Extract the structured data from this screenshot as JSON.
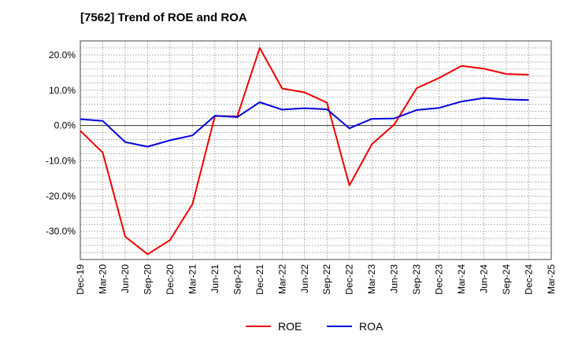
{
  "chart_data": {
    "type": "line",
    "title": "[7562]  Trend of ROE and ROA",
    "xlabel": "",
    "ylabel": "",
    "x": [
      "Dec-19",
      "Mar-20",
      "Jun-20",
      "Sep-20",
      "Dec-20",
      "Mar-21",
      "Jun-21",
      "Sep-21",
      "Dec-21",
      "Mar-22",
      "Jun-22",
      "Sep-22",
      "Dec-22",
      "Mar-23",
      "Jun-23",
      "Sep-23",
      "Dec-23",
      "Mar-24",
      "Jun-24",
      "Sep-24",
      "Dec-24",
      "Mar-25"
    ],
    "ylim": [
      -38,
      24
    ],
    "yticks": [
      20,
      10,
      0,
      -10,
      -20,
      -30
    ],
    "ytick_labels": [
      "20.0%",
      "10.0%",
      "0.0%",
      "-10.0%",
      "-20.0%",
      "-30.0%"
    ],
    "grid": true,
    "legend_position": "bottom",
    "series": [
      {
        "name": "ROE",
        "color": "#ee0000",
        "values": [
          -1.5,
          -7.7,
          -31.5,
          -36.5,
          -32.5,
          -22.3,
          2.7,
          2.6,
          22.0,
          10.5,
          9.4,
          6.5,
          -17.0,
          -5.3,
          0.3,
          10.6,
          13.5,
          16.9,
          16.1,
          14.6,
          14.4,
          null
        ]
      },
      {
        "name": "ROA",
        "color": "#0000dd",
        "values": [
          1.8,
          1.3,
          -4.7,
          -6.0,
          -4.2,
          -2.8,
          2.8,
          2.4,
          6.6,
          4.5,
          4.9,
          4.6,
          -0.8,
          1.9,
          2.0,
          4.4,
          5.0,
          6.8,
          7.8,
          7.4,
          7.2,
          null
        ]
      }
    ]
  }
}
